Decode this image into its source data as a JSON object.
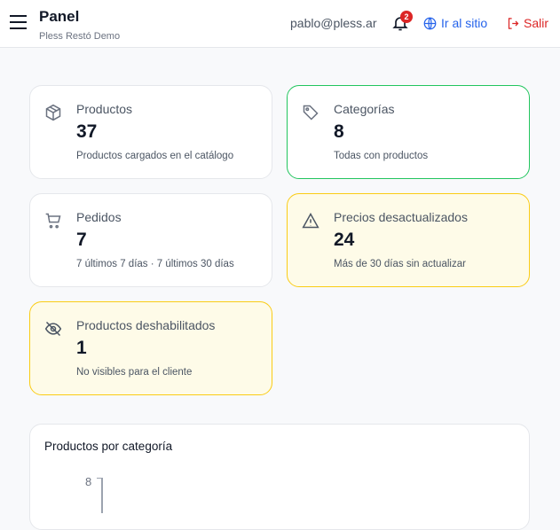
{
  "header": {
    "title": "Panel",
    "subtitle": "Pless Restó Demo",
    "email": "pablo@pless.ar",
    "notifications": "2",
    "site_link": "Ir al sitio",
    "logout": "Salir"
  },
  "cards": [
    {
      "label": "Productos",
      "value": "37",
      "desc": "Productos cargados en el catálogo",
      "icon": "box-icon"
    },
    {
      "label": "Categorías",
      "value": "8",
      "desc": "Todas con productos",
      "icon": "tag-icon",
      "accent": "#22c55e"
    },
    {
      "label": "Pedidos",
      "value": "7",
      "desc": "7 últimos 7 días · 7 últimos 30 días",
      "icon": "cart-icon"
    },
    {
      "label": "Precios desactualizados",
      "value": "24",
      "desc": "Más de 30 días sin actualizar",
      "icon": "warning-icon",
      "accent": "#facc15"
    },
    {
      "label": "Productos deshabilitados",
      "value": "1",
      "desc": "No visibles para el cliente",
      "icon": "eye-off-icon",
      "accent": "#facc15"
    }
  ],
  "chart": {
    "title": "Productos por categoría",
    "y_tick_top": "8"
  }
}
